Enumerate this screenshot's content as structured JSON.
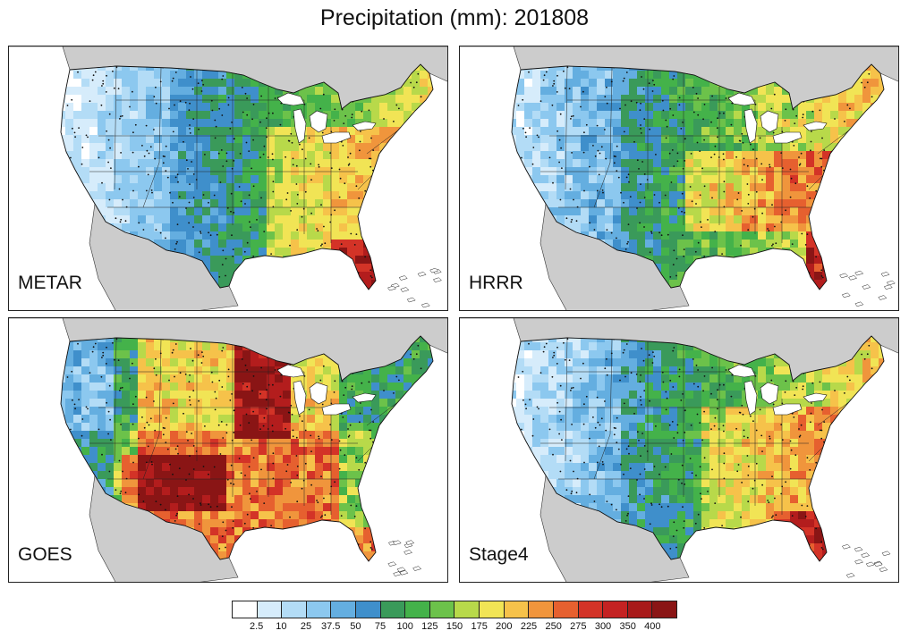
{
  "title": "Precipitation (mm): 201808",
  "panels": [
    {
      "label": "METAR",
      "mode": "metar"
    },
    {
      "label": "HRRR",
      "mode": "hrrr"
    },
    {
      "label": "GOES",
      "mode": "goes"
    },
    {
      "label": "Stage4",
      "mode": "stage4"
    }
  ],
  "colorbar": {
    "ticks": [
      "2.5",
      "10",
      "25",
      "37.5",
      "50",
      "75",
      "100",
      "125",
      "150",
      "175",
      "200",
      "225",
      "250",
      "275",
      "300",
      "350",
      "400"
    ],
    "colors": [
      "#ffffff",
      "#d6ecfb",
      "#b3dcf6",
      "#8cc8ef",
      "#64aee0",
      "#3f8fcb",
      "#3a9a5a",
      "#44b24a",
      "#6cc24a",
      "#b8d94a",
      "#f1e455",
      "#f6c24a",
      "#f0953c",
      "#e6602f",
      "#d33327",
      "#b31d1d",
      "#8a1515"
    ]
  },
  "colors": {
    "land": "#ffffff",
    "outside": "#cccccc",
    "water": "#ffffff",
    "border": "#111111"
  }
}
